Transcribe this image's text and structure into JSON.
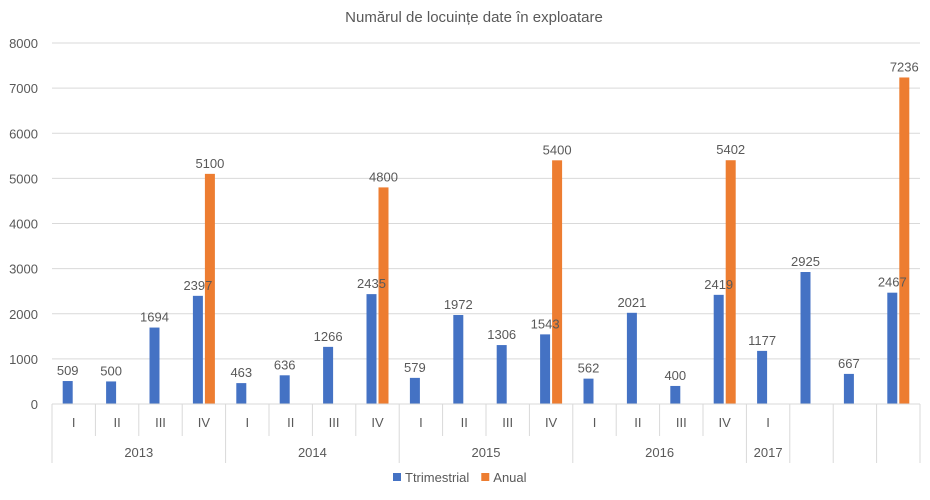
{
  "chart_data": {
    "type": "bar",
    "title": "Numărul de locuințe date în exploatare",
    "xlabel": "",
    "ylabel": "",
    "ylim": [
      0,
      8000
    ],
    "yticks": [
      0,
      1000,
      2000,
      3000,
      4000,
      5000,
      6000,
      7000,
      8000
    ],
    "grid": true,
    "legend_position": "bottom",
    "categories": [
      "I",
      "II",
      "III",
      "IV",
      "I",
      "II",
      "III",
      "IV",
      "I",
      "II",
      "III",
      "IV",
      "I",
      "II",
      "III",
      "IV",
      "I",
      "",
      "",
      ""
    ],
    "groups": [
      {
        "label": "2013",
        "span": 4
      },
      {
        "label": "2014",
        "span": 4
      },
      {
        "label": "2015",
        "span": 4
      },
      {
        "label": "2016",
        "span": 4
      },
      {
        "label": "2017",
        "span": 1
      },
      {
        "label": "",
        "span": 1
      },
      {
        "label": "",
        "span": 1
      },
      {
        "label": "",
        "span": 1
      }
    ],
    "series": [
      {
        "name": "Ttrimestrial",
        "color": "#4472C4",
        "values": [
          509,
          500,
          1694,
          2397,
          463,
          636,
          1266,
          2435,
          579,
          1972,
          1306,
          1543,
          562,
          2021,
          400,
          2419,
          1177,
          2925,
          667,
          2467
        ]
      },
      {
        "name": "Anual",
        "color": "#ED7D31",
        "values": [
          null,
          null,
          null,
          5100,
          null,
          null,
          null,
          4800,
          null,
          null,
          null,
          5400,
          null,
          null,
          null,
          5402,
          null,
          null,
          null,
          7236
        ]
      }
    ]
  }
}
